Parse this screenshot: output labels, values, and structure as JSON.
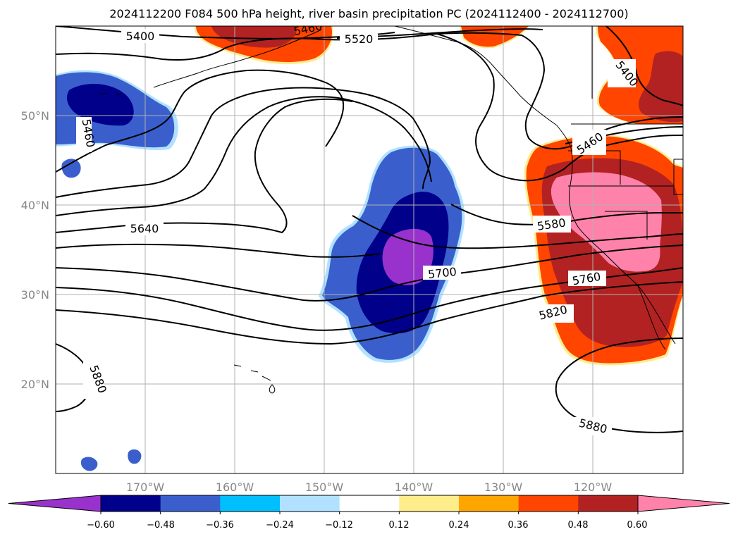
{
  "title": "2024112200 F084 500 hPa height, river basin precipitation PC (2024112400 - 2024112700)",
  "map": {
    "projection": "lat-lon",
    "lon_range": [
      "180°W",
      "110°W"
    ],
    "lat_range": [
      "10°N",
      "60°N"
    ],
    "lat_ticks": [
      "50°N",
      "40°N",
      "30°N",
      "20°N"
    ],
    "lon_ticks": [
      "170°W",
      "160°W",
      "150°W",
      "140°W",
      "130°W",
      "120°W"
    ],
    "gridlines": true
  },
  "contours": {
    "field": "500 hPa height",
    "color": "#000000",
    "labels": [
      "5400",
      "5460",
      "5520",
      "5460",
      "5400",
      "5460",
      "5640",
      "5580",
      "5700",
      "5760",
      "5820",
      "5880",
      "5880"
    ]
  },
  "colorbar": {
    "ticks": [
      "−0.60",
      "−0.48",
      "−0.36",
      "−0.24",
      "−0.12",
      "0.12",
      "0.24",
      "0.36",
      "0.48",
      "0.60"
    ],
    "colors": [
      "#9932cc",
      "#00008b",
      "#3a5fcd",
      "#00bfff",
      "#b0e2ff",
      "#ffffff",
      "#ffec8b",
      "#ffa500",
      "#ff4500",
      "#b22222",
      "#ff82ab"
    ],
    "extend": "both"
  },
  "precip_colors": {
    "neg_strong": "#9932cc",
    "neg_2": "#00008b",
    "neg_3": "#3a5fcd",
    "neg_4": "#00bfff",
    "pos_1": "#ffec8b",
    "pos_2": "#ffa500",
    "pos_3": "#ff4500",
    "pos_4": "#b22222",
    "pos_strong": "#ff82ab"
  }
}
